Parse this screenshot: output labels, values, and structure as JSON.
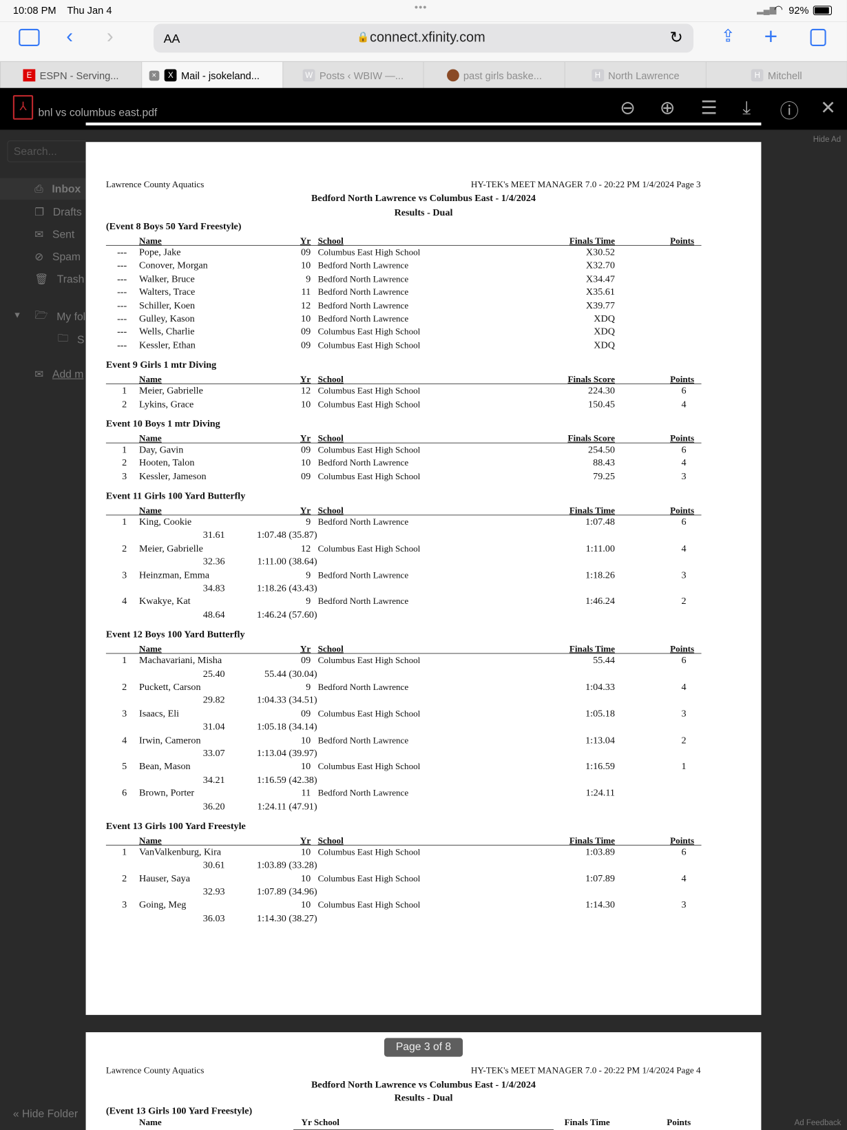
{
  "status": {
    "time": "10:08 PM",
    "date": "Thu Jan 4",
    "battery": "92%"
  },
  "browser": {
    "text_size": "AA",
    "url": "connect.xfinity.com",
    "tabs": [
      {
        "label": "ESPN - Serving...",
        "icon": "espn-icon"
      },
      {
        "label": "Mail - jsokeland...",
        "icon": "x-icon",
        "active": true
      },
      {
        "label": "Posts ‹ WBIW —...",
        "icon": "W"
      },
      {
        "label": "past girls baske...",
        "icon": "basketball-icon"
      },
      {
        "label": "North Lawrence",
        "icon": "H"
      },
      {
        "label": "Mitchell",
        "icon": "H"
      }
    ]
  },
  "pdf": {
    "filename": "bnl vs columbus east.pdf",
    "page_indicator": "Page 3 of 8"
  },
  "mail": {
    "search_placeholder": "Search...",
    "folders": [
      "Inbox",
      "Drafts",
      "Sent",
      "Spam",
      "Trash"
    ],
    "my_folders": "My fol",
    "sub": "S",
    "add": "Add m",
    "hide_folder": "« Hide Folder",
    "hide_ad": "Hide Ad",
    "ad_feedback": "Ad Feedback"
  },
  "page3": {
    "left_header": "Lawrence County Aquatics",
    "right_header": "HY-TEK's MEET MANAGER 7.0 - 20:22 PM  1/4/2024  Page 3",
    "title": "Bedford North Lawrence vs Columbus East - 1/4/2024",
    "subtitle": "Results - Dual",
    "columns": {
      "name": "Name",
      "yr": "Yr",
      "school": "School",
      "points": "Points"
    },
    "events": [
      {
        "title": "(Event 8  Boys 50 Yard Freestyle)",
        "result_col": "Finals Time",
        "rows": [
          {
            "place": "---",
            "name": "Pope, Jake",
            "yr": "09",
            "school": "Columbus East High School",
            "result": "X30.52",
            "points": ""
          },
          {
            "place": "---",
            "name": "Conover, Morgan",
            "yr": "10",
            "school": "Bedford North Lawrence",
            "result": "X32.70",
            "points": ""
          },
          {
            "place": "---",
            "name": "Walker, Bruce",
            "yr": "9",
            "school": "Bedford North Lawrence",
            "result": "X34.47",
            "points": ""
          },
          {
            "place": "---",
            "name": "Walters, Trace",
            "yr": "11",
            "school": "Bedford North Lawrence",
            "result": "X35.61",
            "points": ""
          },
          {
            "place": "---",
            "name": "Schiller, Koen",
            "yr": "12",
            "school": "Bedford North Lawrence",
            "result": "X39.77",
            "points": ""
          },
          {
            "place": "---",
            "name": "Gulley, Kason",
            "yr": "10",
            "school": "Bedford North Lawrence",
            "result": "XDQ",
            "points": ""
          },
          {
            "place": "---",
            "name": "Wells, Charlie",
            "yr": "09",
            "school": "Columbus East High School",
            "result": "XDQ",
            "points": ""
          },
          {
            "place": "---",
            "name": "Kessler, Ethan",
            "yr": "09",
            "school": "Columbus East High School",
            "result": "XDQ",
            "points": ""
          }
        ]
      },
      {
        "title": "Event 9  Girls 1 mtr Diving",
        "result_col": "Finals Score",
        "rows": [
          {
            "place": "1",
            "name": "Meier, Gabrielle",
            "yr": "12",
            "school": "Columbus East High School",
            "result": "224.30",
            "points": "6"
          },
          {
            "place": "2",
            "name": "Lykins, Grace",
            "yr": "10",
            "school": "Columbus East High School",
            "result": "150.45",
            "points": "4"
          }
        ]
      },
      {
        "title": "Event 10  Boys 1 mtr Diving",
        "result_col": "Finals Score",
        "rows": [
          {
            "place": "1",
            "name": "Day, Gavin",
            "yr": "09",
            "school": "Columbus East High School",
            "result": "254.50",
            "points": "6"
          },
          {
            "place": "2",
            "name": "Hooten, Talon",
            "yr": "10",
            "school": "Bedford North Lawrence",
            "result": "88.43",
            "points": "4"
          },
          {
            "place": "3",
            "name": "Kessler, Jameson",
            "yr": "09",
            "school": "Columbus East High School",
            "result": "79.25",
            "points": "3"
          }
        ]
      },
      {
        "title": "Event 11  Girls 100 Yard Butterfly",
        "result_col": "Finals Time",
        "rows": [
          {
            "place": "1",
            "name": "King, Cookie",
            "yr": "9",
            "school": "Bedford North Lawrence",
            "result": "1:07.48",
            "points": "6",
            "split1": "31.61",
            "split2": "1:07.48 (35.87)"
          },
          {
            "place": "2",
            "name": "Meier, Gabrielle",
            "yr": "12",
            "school": "Columbus East High School",
            "result": "1:11.00",
            "points": "4",
            "split1": "32.36",
            "split2": "1:11.00 (38.64)"
          },
          {
            "place": "3",
            "name": "Heinzman, Emma",
            "yr": "9",
            "school": "Bedford North Lawrence",
            "result": "1:18.26",
            "points": "3",
            "split1": "34.83",
            "split2": "1:18.26 (43.43)"
          },
          {
            "place": "4",
            "name": "Kwakye, Kat",
            "yr": "9",
            "school": "Bedford North Lawrence",
            "result": "1:46.24",
            "points": "2",
            "split1": "48.64",
            "split2": "1:46.24 (57.60)"
          }
        ]
      },
      {
        "title": "Event 12  Boys 100 Yard Butterfly",
        "result_col": "Finals Time",
        "rows": [
          {
            "place": "1",
            "name": "Machavariani, Misha",
            "yr": "09",
            "school": "Columbus East High School",
            "result": "55.44",
            "points": "6",
            "split1": "25.40",
            "split2": "55.44 (30.04)"
          },
          {
            "place": "2",
            "name": "Puckett, Carson",
            "yr": "9",
            "school": "Bedford North Lawrence",
            "result": "1:04.33",
            "points": "4",
            "split1": "29.82",
            "split2": "1:04.33 (34.51)"
          },
          {
            "place": "3",
            "name": "Isaacs, Eli",
            "yr": "09",
            "school": "Columbus East High School",
            "result": "1:05.18",
            "points": "3",
            "split1": "31.04",
            "split2": "1:05.18 (34.14)"
          },
          {
            "place": "4",
            "name": "Irwin, Cameron",
            "yr": "10",
            "school": "Bedford North Lawrence",
            "result": "1:13.04",
            "points": "2",
            "split1": "33.07",
            "split2": "1:13.04 (39.97)"
          },
          {
            "place": "5",
            "name": "Bean, Mason",
            "yr": "10",
            "school": "Columbus East High School",
            "result": "1:16.59",
            "points": "1",
            "split1": "34.21",
            "split2": "1:16.59 (42.38)"
          },
          {
            "place": "6",
            "name": "Brown, Porter",
            "yr": "11",
            "school": "Bedford North Lawrence",
            "result": "1:24.11",
            "points": "",
            "split1": "36.20",
            "split2": "1:24.11 (47.91)"
          }
        ]
      },
      {
        "title": "Event 13  Girls 100 Yard Freestyle",
        "result_col": "Finals Time",
        "rows": [
          {
            "place": "1",
            "name": "VanValkenburg, Kira",
            "yr": "10",
            "school": "Columbus East High School",
            "result": "1:03.89",
            "points": "6",
            "split1": "30.61",
            "split2": "1:03.89 (33.28)"
          },
          {
            "place": "2",
            "name": "Hauser, Saya",
            "yr": "10",
            "school": "Columbus East High School",
            "result": "1:07.89",
            "points": "4",
            "split1": "32.93",
            "split2": "1:07.89 (34.96)"
          },
          {
            "place": "3",
            "name": "Going, Meg",
            "yr": "10",
            "school": "Columbus East High School",
            "result": "1:14.30",
            "points": "3",
            "split1": "36.03",
            "split2": "1:14.30 (38.27)"
          }
        ]
      }
    ]
  },
  "page4": {
    "left_header": "Lawrence County Aquatics",
    "right_header": "HY-TEK's MEET MANAGER 7.0 - 20:22 PM  1/4/2024  Page 4",
    "title": "Bedford North Lawrence vs Columbus East - 1/4/2024",
    "subtitle": "Results - Dual",
    "event_title": "(Event 13  Girls 100 Yard Freestyle)",
    "col_name": "Name",
    "col_yr_school": "Yr  School",
    "col_result": "Finals Time",
    "col_points": "Points"
  }
}
